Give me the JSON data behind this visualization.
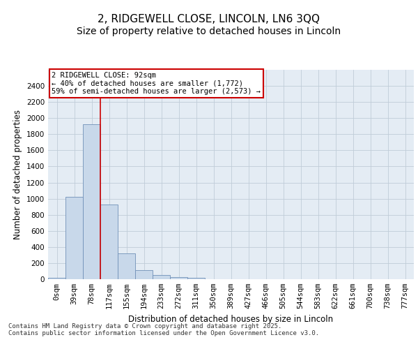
{
  "title_line1": "2, RIDGEWELL CLOSE, LINCOLN, LN6 3QQ",
  "title_line2": "Size of property relative to detached houses in Lincoln",
  "xlabel": "Distribution of detached houses by size in Lincoln",
  "ylabel": "Number of detached properties",
  "bar_color": "#c8d8ea",
  "bar_edge_color": "#7090b8",
  "grid_color": "#c0ccd8",
  "background_color": "#e4ecf4",
  "annotation_text": "2 RIDGEWELL CLOSE: 92sqm\n← 40% of detached houses are smaller (1,772)\n59% of semi-detached houses are larger (2,573) →",
  "annotation_box_color": "#ffffff",
  "annotation_box_edge": "#cc0000",
  "vline_x": 2.5,
  "vline_color": "#cc0000",
  "categories": [
    "0sqm",
    "39sqm",
    "78sqm",
    "117sqm",
    "155sqm",
    "194sqm",
    "233sqm",
    "272sqm",
    "311sqm",
    "350sqm",
    "389sqm",
    "427sqm",
    "466sqm",
    "505sqm",
    "544sqm",
    "583sqm",
    "622sqm",
    "661sqm",
    "700sqm",
    "738sqm",
    "777sqm"
  ],
  "bar_heights": [
    20,
    1025,
    1920,
    930,
    320,
    110,
    55,
    30,
    15,
    0,
    0,
    0,
    0,
    0,
    0,
    0,
    0,
    0,
    0,
    0,
    0
  ],
  "ylim": [
    0,
    2600
  ],
  "yticks": [
    0,
    200,
    400,
    600,
    800,
    1000,
    1200,
    1400,
    1600,
    1800,
    2000,
    2200,
    2400
  ],
  "footer_text": "Contains HM Land Registry data © Crown copyright and database right 2025.\nContains public sector information licensed under the Open Government Licence v3.0.",
  "title_fontsize": 11,
  "subtitle_fontsize": 10,
  "axis_label_fontsize": 8.5,
  "tick_fontsize": 7.5,
  "footer_fontsize": 6.5
}
